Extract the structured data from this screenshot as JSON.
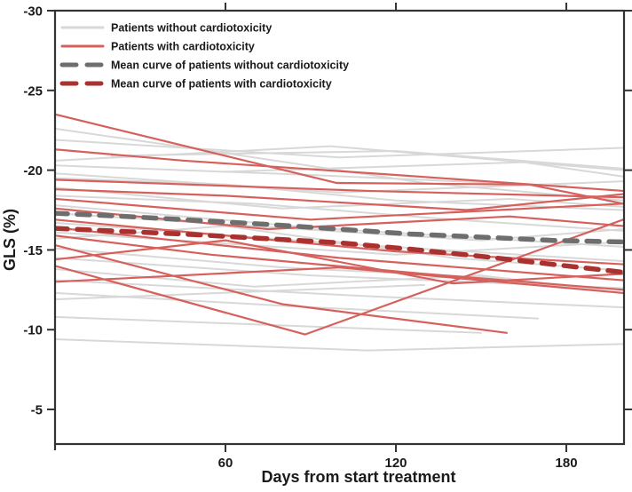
{
  "colors": {
    "background": "#ffffff",
    "axis": "#333333",
    "patient_without": "#d8d8d8",
    "patient_with": "#d6615c",
    "mean_without": "#6e6e6e",
    "mean_with": "#a93230"
  },
  "chart_data": {
    "type": "line",
    "title": "",
    "xlabel": "Days from start treatment",
    "ylabel": "GLS (%)",
    "x_ticks": [
      60,
      120,
      180
    ],
    "y_ticks": [
      -30,
      -25,
      -20,
      -15,
      -10,
      -5
    ],
    "xlim": [
      0,
      200.3
    ],
    "ylim": [
      -30,
      -2.83
    ],
    "y_axis_inverted": true,
    "grid": false,
    "legend": {
      "position": "top-left-inside",
      "items": [
        {
          "label": "Patients without cardiotoxicity",
          "color": "#d8d8d8",
          "style": "solid",
          "width": 3
        },
        {
          "label": "Patients with cardiotoxicity",
          "color": "#d6615c",
          "style": "solid",
          "width": 3
        },
        {
          "label": "Mean curve of patients without cardiotoxicity",
          "color": "#6e6e6e",
          "style": "dashed",
          "width": 5
        },
        {
          "label": "Mean curve of patients with cardiotoxicity",
          "color": "#a93230",
          "style": "dashed",
          "width": 5
        }
      ]
    },
    "mean_without_cardiotoxicity": {
      "x": [
        0,
        25,
        50,
        75,
        100,
        125,
        150,
        175,
        200
      ],
      "y": [
        -17.3,
        -17.1,
        -16.85,
        -16.6,
        -16.3,
        -16.0,
        -15.8,
        -15.6,
        -15.5
      ]
    },
    "mean_with_cardiotoxicity": {
      "x": [
        0,
        25,
        50,
        75,
        100,
        125,
        150,
        175,
        200
      ],
      "y": [
        -16.35,
        -16.15,
        -15.95,
        -15.7,
        -15.45,
        -15.05,
        -14.6,
        -14.1,
        -13.6
      ]
    },
    "patients_without_cardiotoxicity": [
      {
        "x": [
          0,
          97,
          200
        ],
        "y": [
          -20.6,
          -21.5,
          -20.0
        ]
      },
      {
        "x": [
          0,
          55,
          130,
          200
        ],
        "y": [
          -22.6,
          -21.2,
          -19.2,
          -18.1
        ]
      },
      {
        "x": [
          0,
          100,
          200
        ],
        "y": [
          -21.9,
          -20.8,
          -21.4
        ]
      },
      {
        "x": [
          20,
          120,
          200
        ],
        "y": [
          -20.9,
          -21.2,
          -20.1
        ]
      },
      {
        "x": [
          60,
          165,
          200
        ],
        "y": [
          -19.9,
          -20.5,
          -19.6
        ]
      },
      {
        "x": [
          0,
          90,
          180
        ],
        "y": [
          -20.3,
          -19.7,
          -19.0
        ]
      },
      {
        "x": [
          0,
          100,
          200
        ],
        "y": [
          -19.8,
          -18.6,
          -19.3
        ]
      },
      {
        "x": [
          0,
          60,
          120,
          200
        ],
        "y": [
          -19.5,
          -19.1,
          -18.1,
          -17.5
        ]
      },
      {
        "x": [
          0,
          80,
          160,
          200
        ],
        "y": [
          -18.9,
          -17.6,
          -18.2,
          -17.7
        ]
      },
      {
        "x": [
          0,
          70,
          140,
          200
        ],
        "y": [
          -18.4,
          -17.9,
          -16.9,
          -16.2
        ]
      },
      {
        "x": [
          0,
          90,
          200
        ],
        "y": [
          -17.8,
          -16.4,
          -15.2
        ]
      },
      {
        "x": [
          0,
          60,
          150,
          200
        ],
        "y": [
          -17.3,
          -16.6,
          -15.6,
          -16.3
        ]
      },
      {
        "x": [
          0,
          100,
          200
        ],
        "y": [
          -16.7,
          -15.4,
          -14.3
        ]
      },
      {
        "x": [
          0,
          120,
          200
        ],
        "y": [
          -16.1,
          -14.7,
          -15.5
        ]
      },
      {
        "x": [
          0,
          60,
          140,
          200
        ],
        "y": [
          -15.7,
          -16.5,
          -14.5,
          -13.7
        ]
      },
      {
        "x": [
          0,
          80,
          160
        ],
        "y": [
          -15.1,
          -13.9,
          -13.2
        ]
      },
      {
        "x": [
          0,
          90,
          200
        ],
        "y": [
          -14.5,
          -13.4,
          -12.6
        ]
      },
      {
        "x": [
          0,
          70,
          150,
          200
        ],
        "y": [
          -13.8,
          -12.7,
          -13.4,
          -12.3
        ]
      },
      {
        "x": [
          0,
          110,
          200
        ],
        "y": [
          -13.1,
          -12.1,
          -11.4
        ]
      },
      {
        "x": [
          0,
          80,
          170
        ],
        "y": [
          -12.3,
          -11.5,
          -10.7
        ]
      },
      {
        "x": [
          0,
          130
        ],
        "y": [
          -11.9,
          -12.8
        ]
      },
      {
        "x": [
          0,
          150
        ],
        "y": [
          -10.8,
          -9.8
        ]
      },
      {
        "x": [
          0,
          110,
          200
        ],
        "y": [
          -9.4,
          -8.7,
          -9.1
        ]
      }
    ],
    "patients_with_cardiotoxicity": [
      {
        "x": [
          0,
          99,
          167,
          200
        ],
        "y": [
          -23.5,
          -19.2,
          -19.1,
          -17.9
        ]
      },
      {
        "x": [
          0,
          110,
          200
        ],
        "y": [
          -19.4,
          -18.7,
          -18.3
        ]
      },
      {
        "x": [
          0,
          60,
          145,
          200
        ],
        "y": [
          -18.8,
          -18.4,
          -17.5,
          -18.5
        ]
      },
      {
        "x": [
          0,
          90,
          200
        ],
        "y": [
          -18.2,
          -16.9,
          -17.9
        ]
      },
      {
        "x": [
          0,
          75,
          160,
          200
        ],
        "y": [
          -17.6,
          -16.3,
          -17.1,
          -16.5
        ]
      },
      {
        "x": [
          0,
          60,
          120,
          200
        ],
        "y": [
          -16.9,
          -15.9,
          -14.9,
          -14.1
        ]
      },
      {
        "x": [
          0,
          100,
          200
        ],
        "y": [
          -16.4,
          -14.5,
          -13.1
        ]
      },
      {
        "x": [
          0,
          55,
          130,
          200
        ],
        "y": [
          -15.9,
          -14.7,
          -13.5,
          -12.5
        ]
      },
      {
        "x": [
          0,
          88,
          200
        ],
        "y": [
          -14.0,
          -9.7,
          -16.9
        ]
      },
      {
        "x": [
          0,
          80,
          159
        ],
        "y": [
          -15.3,
          -11.6,
          -9.8
        ]
      },
      {
        "x": [
          0,
          60,
          140,
          200
        ],
        "y": [
          -14.4,
          -15.6,
          -12.9,
          -13.5
        ]
      },
      {
        "x": [
          0,
          100,
          200
        ],
        "y": [
          -13.0,
          -13.9,
          -12.3
        ]
      },
      {
        "x": [
          0,
          45,
          120,
          200
        ],
        "y": [
          -21.3,
          -20.6,
          -19.7,
          -18.7
        ]
      }
    ]
  }
}
